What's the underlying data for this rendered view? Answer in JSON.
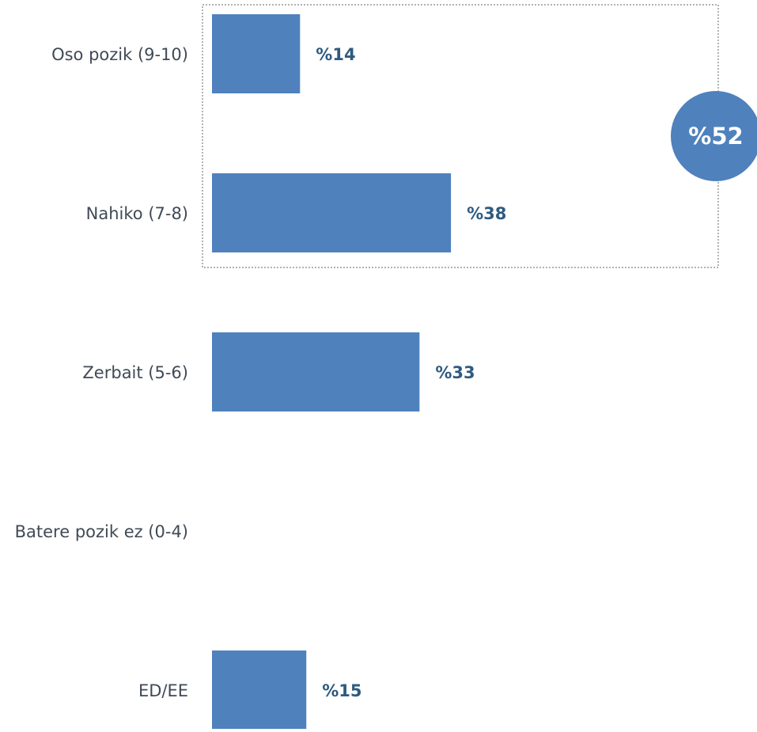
{
  "chart_data": {
    "type": "hbar",
    "categories": [
      "Oso pozik (9-10)",
      "Nahiko (7-8)",
      "Zerbait (5-6)",
      "Batere pozik ez (0-4)",
      "ED/EE"
    ],
    "values": [
      14,
      38,
      33,
      null,
      15
    ],
    "value_labels": [
      "%14",
      "%38",
      "%33",
      null,
      "%15"
    ],
    "color": "#4f81bd",
    "xlim": [
      0,
      80
    ],
    "annotation": {
      "text": "%52",
      "value": 52,
      "groups": [
        0,
        1
      ]
    }
  }
}
